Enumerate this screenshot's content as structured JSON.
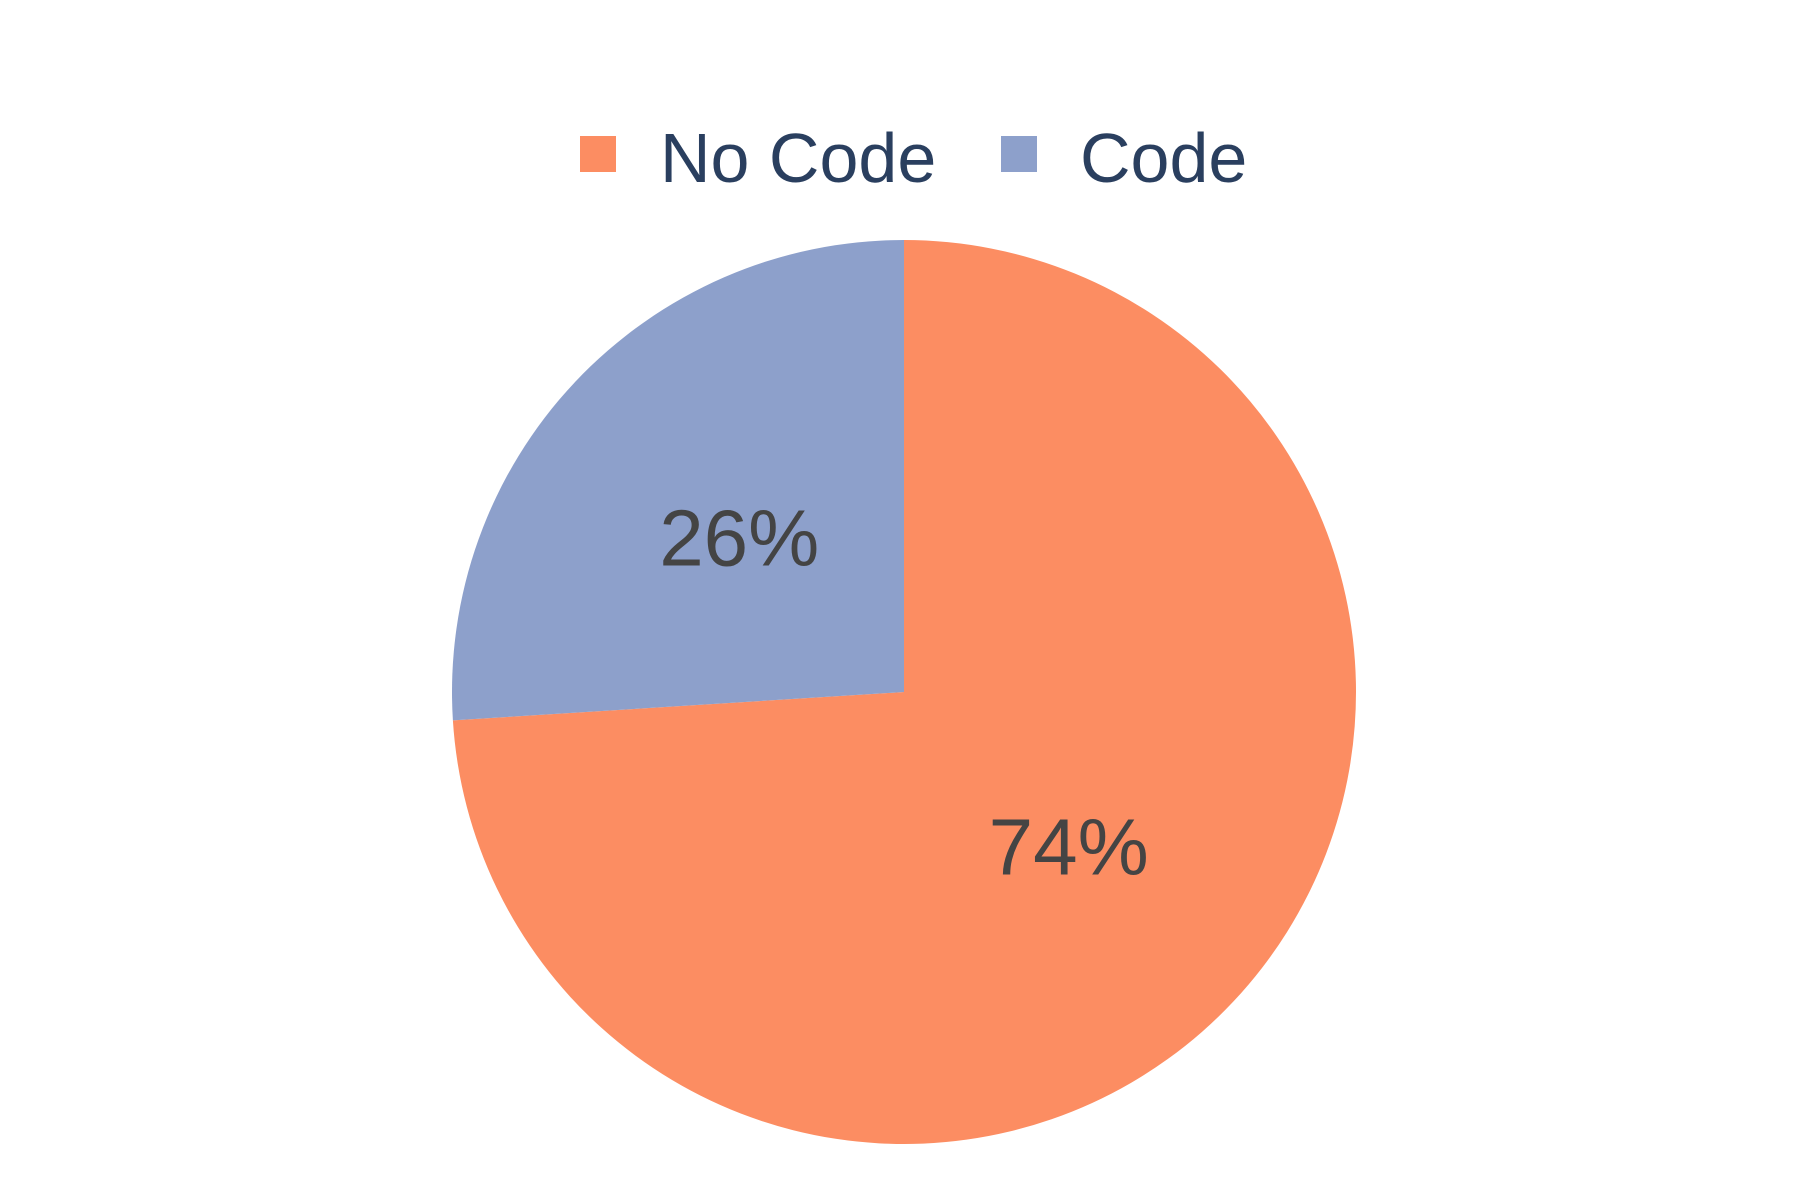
{
  "chart_data": {
    "type": "pie",
    "title": "",
    "categories": [
      "No Code",
      "Code"
    ],
    "values": [
      74,
      26
    ],
    "labels": [
      "74%",
      "26%"
    ],
    "colors": [
      "#fc8d62",
      "#8da0cb"
    ],
    "legend_position": "top-center",
    "direction": "clockwise",
    "start": "top"
  },
  "legend": {
    "items": [
      {
        "label": "No Code",
        "color": "#fc8d62"
      },
      {
        "label": "Code",
        "color": "#8da0cb"
      }
    ]
  },
  "text_color": "#2a3f5f",
  "slice_label_color": "#444444"
}
